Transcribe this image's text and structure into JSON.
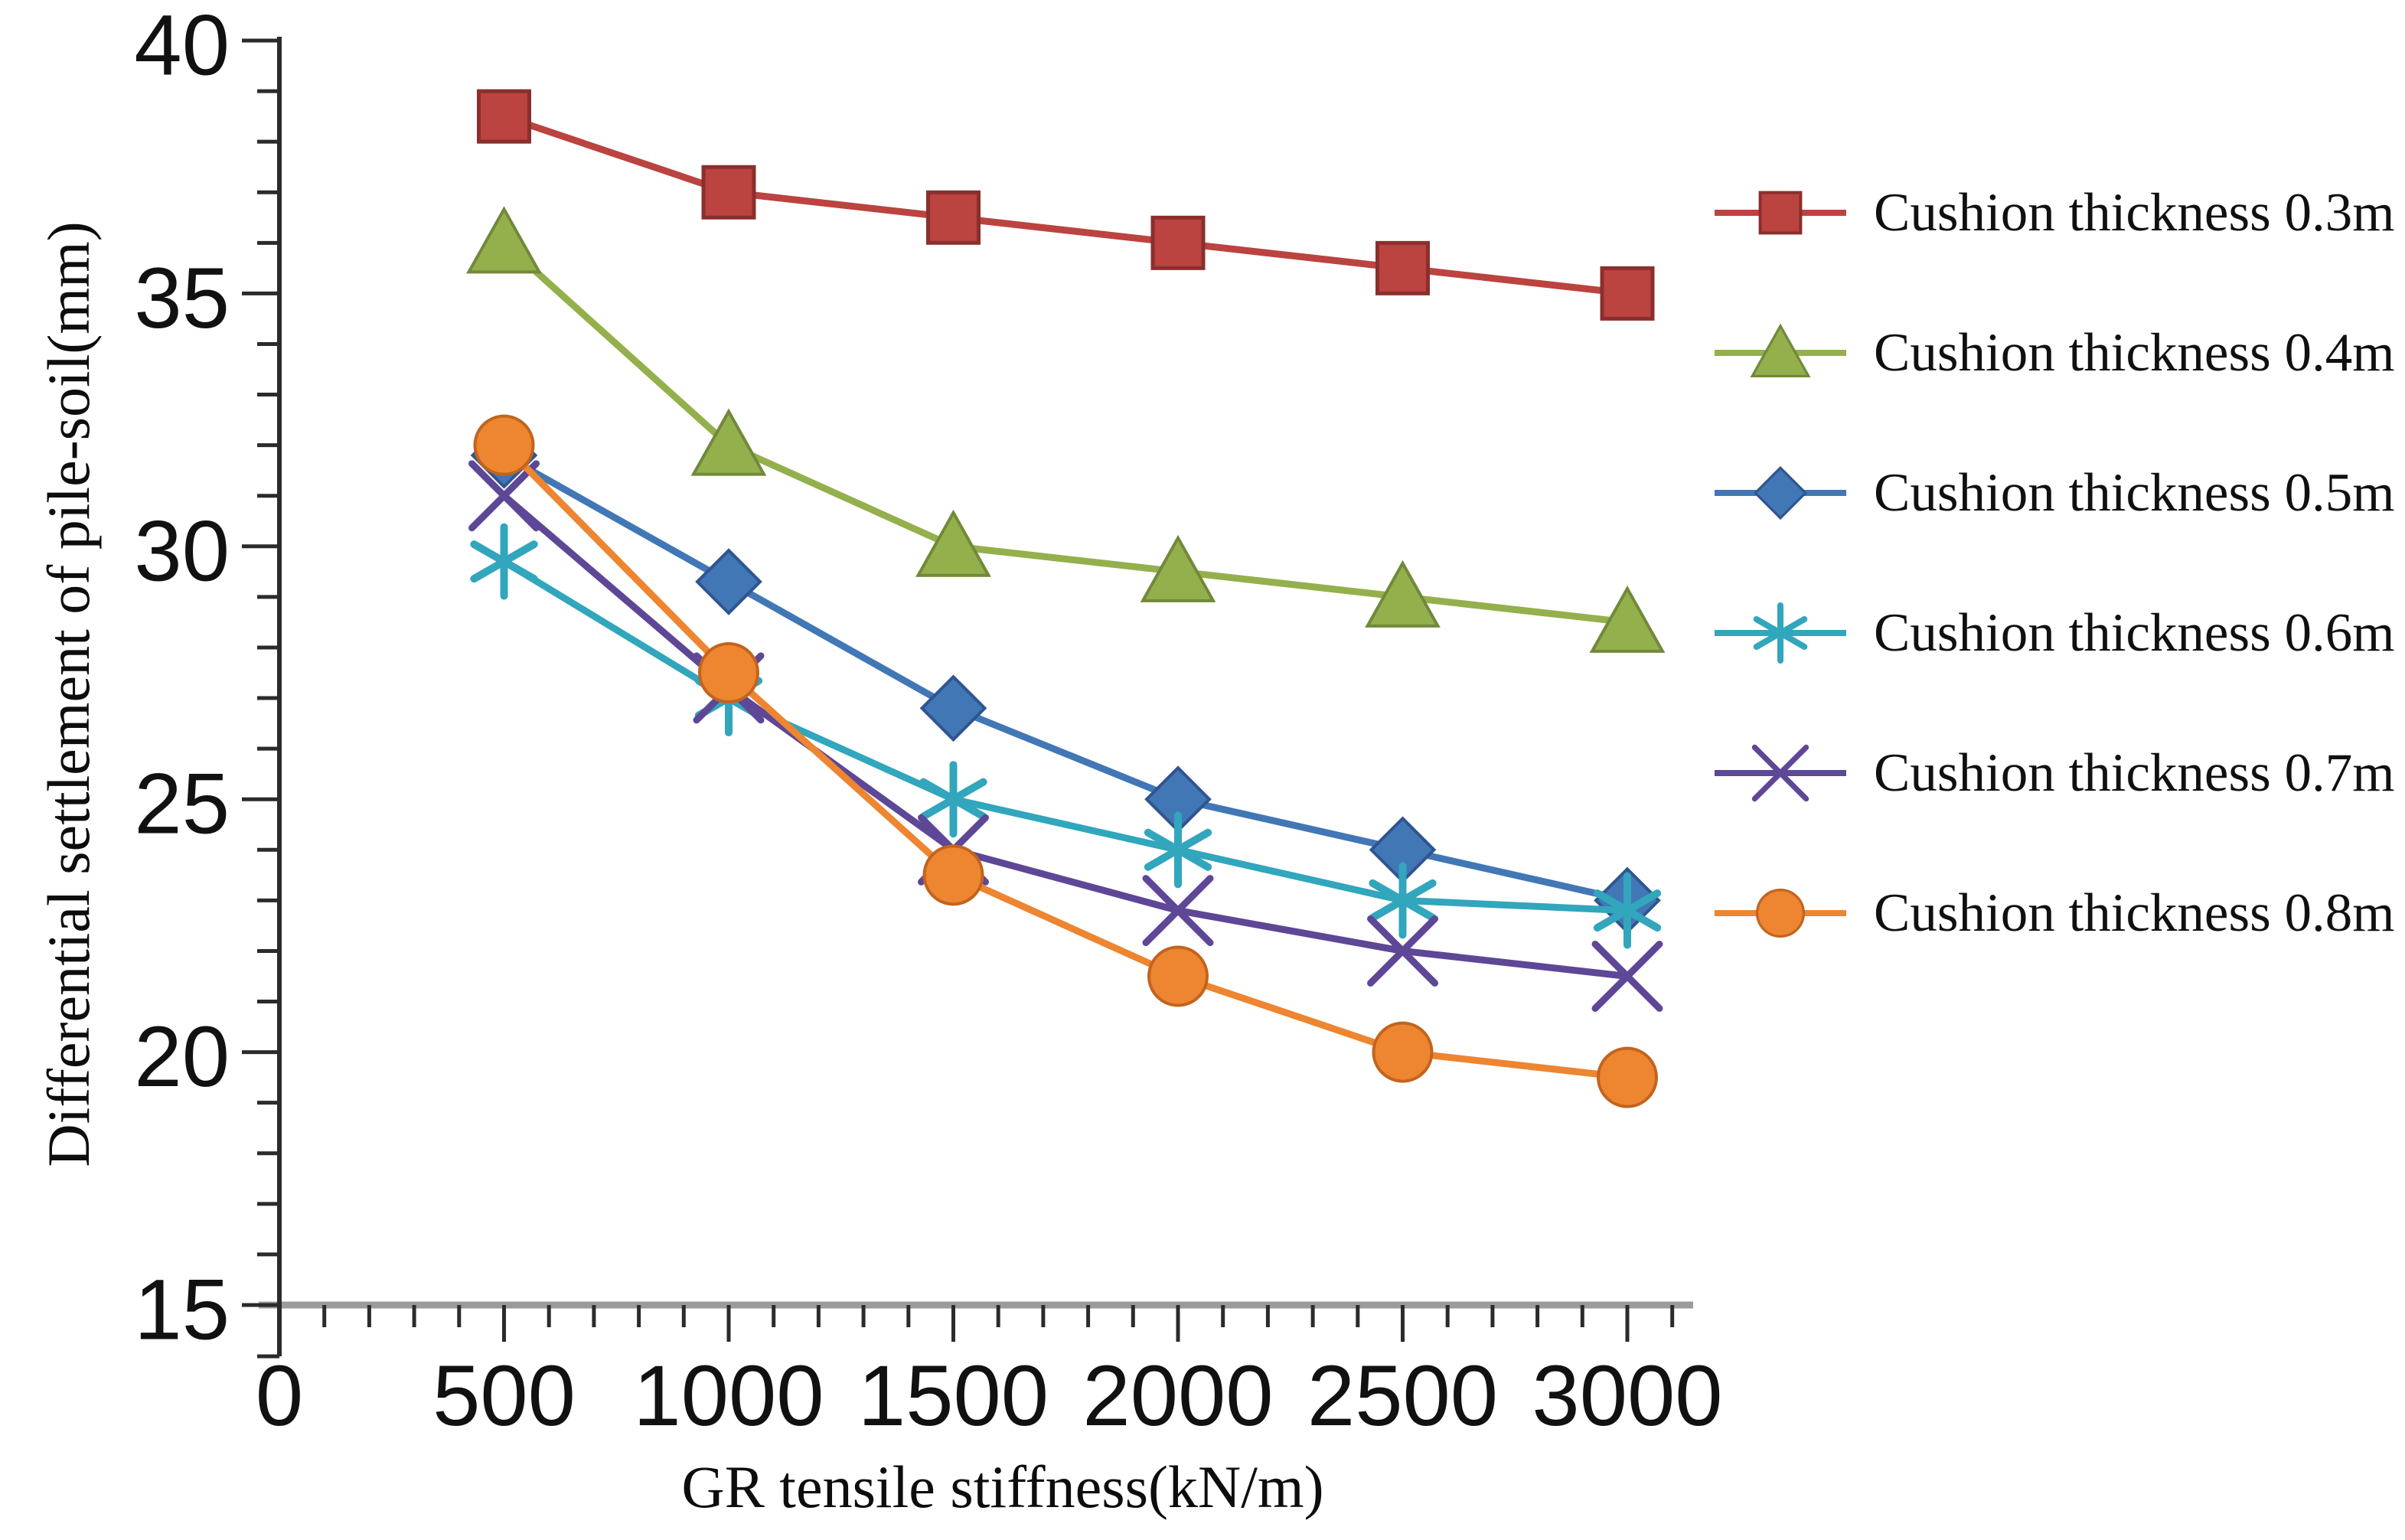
{
  "page": {
    "background": "#ffffff"
  },
  "chart_data": {
    "type": "line",
    "title": "",
    "xlabel": "GR tensile stiffness(kN/m)",
    "ylabel": "Differential settlement of pile-soil(mm)",
    "x": [
      500,
      1000,
      1500,
      2000,
      2500,
      3000
    ],
    "x_ticks": [
      0,
      500,
      1000,
      1500,
      2000,
      2500,
      3000
    ],
    "x_minor_step": 100,
    "y_ticks": [
      15,
      20,
      25,
      30,
      35,
      40
    ],
    "y_minor_step": 1,
    "xlim": [
      0,
      3150
    ],
    "ylim": [
      15,
      40
    ],
    "grid": false,
    "legend_position": "right",
    "axis_color": "#2b2b2b",
    "x_axis_line_color": "#9b9b9b",
    "tick_label_color": "#111111",
    "series": [
      {
        "name": "Cushion thickness 0.3m",
        "marker": "square",
        "color": "#BB4340",
        "edge": "#8A2F2D",
        "values": [
          38.5,
          37.0,
          36.5,
          36.0,
          35.5,
          35.0
        ]
      },
      {
        "name": "Cushion thickness 0.4m",
        "marker": "triangle",
        "color": "#94B04C",
        "edge": "#71893A",
        "values": [
          36.0,
          32.0,
          30.0,
          29.5,
          29.0,
          28.5
        ]
      },
      {
        "name": "Cushion thickness 0.5m",
        "marker": "diamond",
        "color": "#4277B6",
        "edge": "#2F5591",
        "values": [
          31.8,
          29.3,
          26.8,
          25.0,
          24.0,
          23.0
        ]
      },
      {
        "name": "Cushion thickness 0.6m",
        "marker": "asterisk",
        "color": "#31A6BC",
        "edge": "#2A8FA2",
        "values": [
          29.7,
          27.0,
          25.0,
          24.0,
          23.0,
          22.8
        ]
      },
      {
        "name": "Cushion thickness 0.7m",
        "marker": "xcross",
        "color": "#5D4796",
        "edge": "#4A3879",
        "values": [
          31.0,
          27.2,
          24.0,
          22.8,
          22.0,
          21.5
        ]
      },
      {
        "name": "Cushion thickness 0.8m",
        "marker": "circle",
        "color": "#ED8531",
        "edge": "#C2641E",
        "values": [
          32.0,
          27.5,
          23.5,
          21.5,
          20.0,
          19.5
        ]
      }
    ]
  }
}
